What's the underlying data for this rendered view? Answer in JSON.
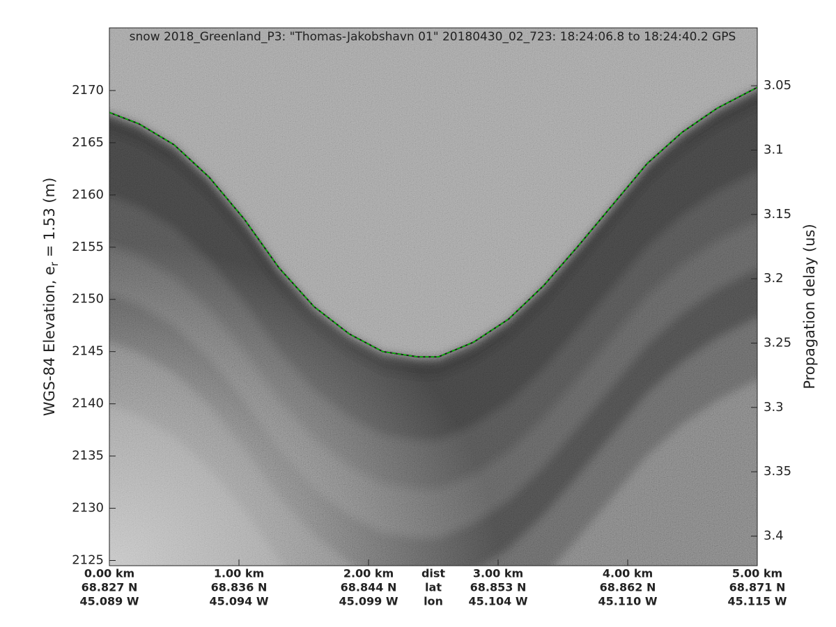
{
  "chart_data": {
    "type": "line",
    "title": "snow 2018_Greenland_P3: \"Thomas-Jakobshavn 01\"  20180430_02_723: 18:24:06.8 to 18:24:40.2 GPS",
    "ylabel": [
      "WGS-84 Elevation, e",
      "r",
      " = 1.53 (m)"
    ],
    "y2label": "Propagation delay (us)",
    "x": [
      0,
      0.23,
      0.5,
      0.77,
      1.04,
      1.31,
      1.58,
      1.85,
      2.11,
      2.38,
      2.54,
      2.81,
      3.08,
      3.35,
      3.61,
      3.88,
      4.15,
      4.42,
      4.69,
      5.0
    ],
    "values": [
      2167.9,
      2166.8,
      2164.8,
      2161.7,
      2157.7,
      2153.0,
      2149.3,
      2146.7,
      2145.0,
      2144.5,
      2144.5,
      2145.9,
      2148.1,
      2151.3,
      2155.0,
      2159.0,
      2163.0,
      2166.0,
      2168.3,
      2170.3
    ],
    "color": "#00c800",
    "xlim": [
      0,
      5
    ],
    "xticks": [
      {
        "value": 0,
        "label": "0.00 km"
      },
      {
        "value": 1,
        "label": "1.00 km"
      },
      {
        "value": 2,
        "label": "2.00 km"
      },
      {
        "value": 3,
        "label": "3.00 km"
      },
      {
        "value": 4,
        "label": "4.00 km"
      },
      {
        "value": 5,
        "label": "5.00 km"
      }
    ],
    "xtick_lat": [
      "68.827 N",
      "68.836 N",
      "68.844 N",
      "68.853 N",
      "68.862 N",
      "68.871 N"
    ],
    "xtick_lon": [
      "45.089 W",
      "45.094 W",
      "45.099 W",
      "45.104 W",
      "45.110 W",
      "45.115 W"
    ],
    "xtick_row_names": [
      "dist",
      "lat",
      "lon"
    ],
    "ylim": [
      2124.5,
      2176
    ],
    "yticks": [
      2125,
      2130,
      2135,
      2140,
      2145,
      2150,
      2155,
      2160,
      2165,
      2170
    ],
    "y2lim": [
      3.423,
      3.005
    ],
    "y2ticks": [
      3.05,
      3.1,
      3.15,
      3.2,
      3.25,
      3.3,
      3.35,
      3.4
    ]
  }
}
